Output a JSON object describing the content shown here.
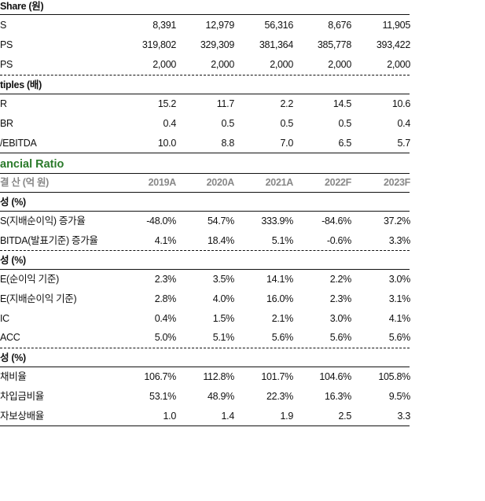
{
  "per_share": {
    "title": "Share (원)",
    "rows": [
      {
        "label": "S",
        "values": [
          "8,391",
          "12,979",
          "56,316",
          "8,676",
          "11,905"
        ]
      },
      {
        "label": "PS",
        "values": [
          "319,802",
          "329,309",
          "381,364",
          "385,778",
          "393,422"
        ]
      },
      {
        "label": "PS",
        "values": [
          "2,000",
          "2,000",
          "2,000",
          "2,000",
          "2,000"
        ]
      }
    ]
  },
  "multiples": {
    "title": "tiples (배)",
    "rows": [
      {
        "label": "R",
        "values": [
          "15.2",
          "11.7",
          "2.2",
          "14.5",
          "10.6"
        ]
      },
      {
        "label": "BR",
        "values": [
          "0.4",
          "0.5",
          "0.5",
          "0.5",
          "0.4"
        ]
      },
      {
        "label": "/EBITDA",
        "values": [
          "10.0",
          "8.8",
          "7.0",
          "6.5",
          "5.7"
        ]
      }
    ]
  },
  "financial_ratio": {
    "title": "ancial Ratio",
    "header": {
      "label": "결 산 (억 원)",
      "years": [
        "2019A",
        "2020A",
        "2021A",
        "2022F",
        "2023F"
      ]
    },
    "growth": {
      "title": "성 (%)",
      "rows": [
        {
          "label": "S(지배순이익) 증가율",
          "values": [
            "-48.0%",
            "54.7%",
            "333.9%",
            "-84.6%",
            "37.2%"
          ]
        },
        {
          "label": "BITDA(발표기준) 증가율",
          "values": [
            "4.1%",
            "18.4%",
            "5.1%",
            "-0.6%",
            "3.3%"
          ]
        }
      ]
    },
    "profitability": {
      "title": "성 (%)",
      "rows": [
        {
          "label": "E(순이익 기준)",
          "values": [
            "2.3%",
            "3.5%",
            "14.1%",
            "2.2%",
            "3.0%"
          ]
        },
        {
          "label": "E(지배순이익 기준)",
          "values": [
            "2.8%",
            "4.0%",
            "16.0%",
            "2.3%",
            "3.1%"
          ]
        },
        {
          "label": "IC",
          "values": [
            "0.4%",
            "1.5%",
            "2.1%",
            "3.0%",
            "4.1%"
          ]
        },
        {
          "label": "ACC",
          "values": [
            "5.0%",
            "5.1%",
            "5.6%",
            "5.6%",
            "5.6%"
          ]
        }
      ]
    },
    "stability": {
      "title": "성 (%)",
      "rows": [
        {
          "label": "채비율",
          "values": [
            "106.7%",
            "112.8%",
            "101.7%",
            "104.6%",
            "105.8%"
          ]
        },
        {
          "label": "차입금비율",
          "values": [
            "53.1%",
            "48.9%",
            "22.3%",
            "16.3%",
            "9.5%"
          ]
        },
        {
          "label": "자보상배율",
          "values": [
            "1.0",
            "1.4",
            "1.9",
            "2.5",
            "3.3"
          ]
        }
      ]
    }
  }
}
